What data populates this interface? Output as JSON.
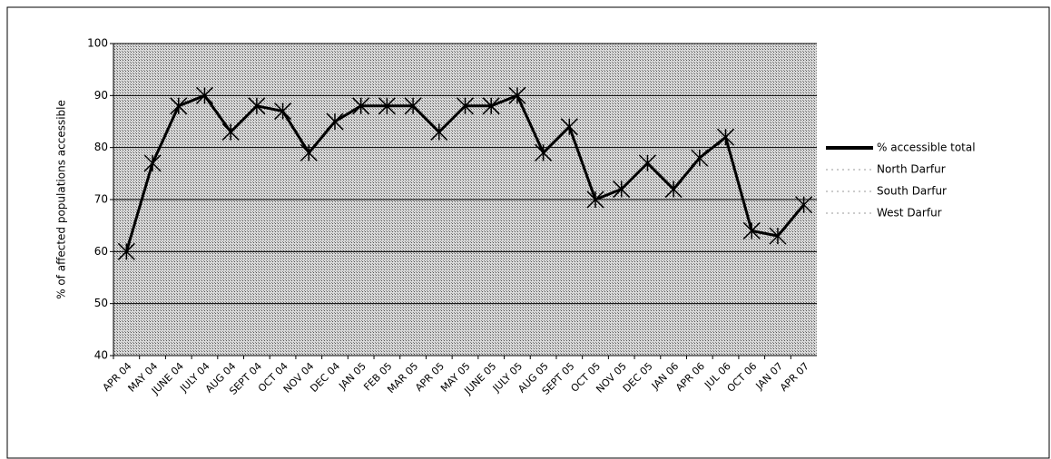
{
  "chart_data": {
    "type": "line",
    "y_label": "% of affected populations accessible",
    "categories": [
      "APR 04",
      "MAY 04",
      "JUNE 04",
      "JULY 04",
      "AUG 04",
      "SEPT 04",
      "OCT 04",
      "NOV 04",
      "DEC 04",
      "JAN 05",
      "FEB 05",
      "MAR 05",
      "APR 05",
      "MAY 05",
      "JUNE 05",
      "JULY 05",
      "AUG 05",
      "SEPT 05",
      "OCT 05",
      "NOV 05",
      "DEC 05",
      "JAN 06",
      "APR 06",
      "JUL 06",
      "OCT 06",
      "JAN 07",
      "APR 07"
    ],
    "series": [
      {
        "name": "% accessible total",
        "color": "#000000",
        "values": [
          60,
          77,
          88,
          90,
          83,
          88,
          87,
          79,
          85,
          88,
          88,
          88,
          83,
          88,
          88,
          90,
          79,
          84,
          70,
          72,
          77,
          72,
          78,
          82,
          64,
          63,
          69
        ]
      },
      {
        "name": "North Darfur",
        "color": "#ffffff",
        "values": [
          null,
          null,
          null,
          null,
          null,
          null,
          null,
          null,
          null,
          null,
          null,
          null,
          null,
          null,
          null,
          null,
          null,
          null,
          null,
          null,
          null,
          null,
          null,
          null,
          null,
          null,
          null
        ]
      },
      {
        "name": "South Darfur",
        "color": "#ffffff",
        "values": [
          null,
          null,
          null,
          null,
          null,
          null,
          null,
          null,
          null,
          null,
          null,
          null,
          null,
          null,
          null,
          null,
          null,
          null,
          null,
          null,
          null,
          null,
          null,
          null,
          null,
          null,
          null
        ]
      },
      {
        "name": "West Darfur",
        "color": "#ffffff",
        "values": [
          null,
          null,
          null,
          null,
          null,
          null,
          null,
          null,
          null,
          null,
          null,
          null,
          null,
          null,
          null,
          null,
          null,
          null,
          null,
          null,
          null,
          null,
          null,
          null,
          null,
          null,
          null
        ]
      }
    ],
    "ylim": [
      40,
      100
    ],
    "yticks": [
      40,
      50,
      60,
      70,
      80,
      90,
      100
    ],
    "grid": true,
    "legend": "right"
  }
}
